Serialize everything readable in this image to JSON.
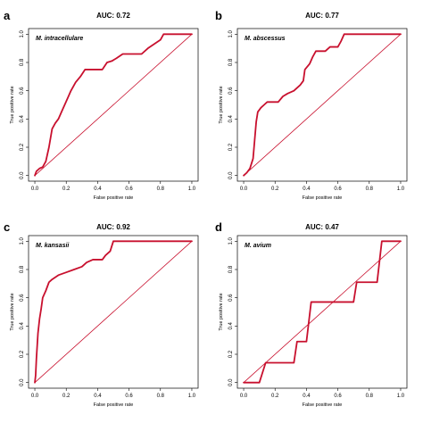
{
  "chart_data": [
    {
      "type": "line",
      "panel_label": "a",
      "title": "AUC: 0.72",
      "legend": "M. intracellulare",
      "xlabel": "False positive rate",
      "ylabel": "True positive rate",
      "xlim": [
        0,
        1
      ],
      "ylim": [
        0,
        1
      ],
      "x_ticks": [
        "0.0",
        "0.2",
        "0.4",
        "0.6",
        "0.8",
        "1.0"
      ],
      "y_ticks": [
        "0.0",
        "0.2",
        "0.4",
        "0.6",
        "0.8",
        "1.0"
      ],
      "diagonal": true,
      "colors": {
        "curve": "#c8102e",
        "diagonal": "#c8102e"
      },
      "points": [
        [
          0,
          0
        ],
        [
          0.01,
          0.03
        ],
        [
          0.03,
          0.05
        ],
        [
          0.05,
          0.06
        ],
        [
          0.07,
          0.1
        ],
        [
          0.09,
          0.2
        ],
        [
          0.11,
          0.33
        ],
        [
          0.13,
          0.37
        ],
        [
          0.15,
          0.4
        ],
        [
          0.17,
          0.45
        ],
        [
          0.19,
          0.5
        ],
        [
          0.21,
          0.55
        ],
        [
          0.23,
          0.6
        ],
        [
          0.26,
          0.66
        ],
        [
          0.29,
          0.7
        ],
        [
          0.32,
          0.75
        ],
        [
          0.4,
          0.75
        ],
        [
          0.43,
          0.75
        ],
        [
          0.46,
          0.8
        ],
        [
          0.49,
          0.81
        ],
        [
          0.52,
          0.83
        ],
        [
          0.56,
          0.86
        ],
        [
          0.68,
          0.86
        ],
        [
          0.72,
          0.9
        ],
        [
          0.76,
          0.93
        ],
        [
          0.8,
          0.96
        ],
        [
          0.82,
          1.0
        ],
        [
          1.0,
          1.0
        ]
      ]
    },
    {
      "type": "line",
      "panel_label": "b",
      "title": "AUC: 0.77",
      "legend": "M. abscessus",
      "xlabel": "False positive rate",
      "ylabel": "True positive rate",
      "xlim": [
        0,
        1
      ],
      "ylim": [
        0,
        1
      ],
      "x_ticks": [
        "0.0",
        "0.2",
        "0.4",
        "0.6",
        "0.8",
        "1.0"
      ],
      "y_ticks": [
        "0.0",
        "0.2",
        "0.4",
        "0.6",
        "0.8",
        "1.0"
      ],
      "diagonal": true,
      "colors": {
        "curve": "#c8102e",
        "diagonal": "#c8102e"
      },
      "points": [
        [
          0,
          0
        ],
        [
          0.02,
          0.02
        ],
        [
          0.04,
          0.05
        ],
        [
          0.06,
          0.12
        ],
        [
          0.07,
          0.25
        ],
        [
          0.08,
          0.38
        ],
        [
          0.09,
          0.45
        ],
        [
          0.11,
          0.48
        ],
        [
          0.13,
          0.5
        ],
        [
          0.15,
          0.52
        ],
        [
          0.22,
          0.52
        ],
        [
          0.25,
          0.56
        ],
        [
          0.28,
          0.58
        ],
        [
          0.32,
          0.6
        ],
        [
          0.36,
          0.64
        ],
        [
          0.38,
          0.67
        ],
        [
          0.39,
          0.75
        ],
        [
          0.42,
          0.79
        ],
        [
          0.44,
          0.84
        ],
        [
          0.46,
          0.88
        ],
        [
          0.52,
          0.88
        ],
        [
          0.55,
          0.91
        ],
        [
          0.6,
          0.91
        ],
        [
          0.62,
          0.95
        ],
        [
          0.64,
          1.0
        ],
        [
          1.0,
          1.0
        ]
      ]
    },
    {
      "type": "line",
      "panel_label": "c",
      "title": "AUC: 0.92",
      "legend": "M. kansasii",
      "xlabel": "False positive rate",
      "ylabel": "True positive rate",
      "xlim": [
        0,
        1
      ],
      "ylim": [
        0,
        1
      ],
      "x_ticks": [
        "0.0",
        "0.2",
        "0.4",
        "0.6",
        "0.8",
        "1.0"
      ],
      "y_ticks": [
        "0.0",
        "0.2",
        "0.4",
        "0.6",
        "0.8",
        "1.0"
      ],
      "diagonal": true,
      "colors": {
        "curve": "#c8102e",
        "diagonal": "#c8102e"
      },
      "points": [
        [
          0,
          0
        ],
        [
          0.005,
          0.05
        ],
        [
          0.01,
          0.17
        ],
        [
          0.02,
          0.35
        ],
        [
          0.03,
          0.45
        ],
        [
          0.04,
          0.52
        ],
        [
          0.05,
          0.6
        ],
        [
          0.07,
          0.65
        ],
        [
          0.09,
          0.71
        ],
        [
          0.11,
          0.73
        ],
        [
          0.15,
          0.76
        ],
        [
          0.2,
          0.78
        ],
        [
          0.25,
          0.8
        ],
        [
          0.3,
          0.82
        ],
        [
          0.33,
          0.85
        ],
        [
          0.37,
          0.87
        ],
        [
          0.43,
          0.87
        ],
        [
          0.45,
          0.9
        ],
        [
          0.48,
          0.93
        ],
        [
          0.5,
          1.0
        ],
        [
          1.0,
          1.0
        ]
      ]
    },
    {
      "type": "line",
      "panel_label": "d",
      "title": "AUC: 0.47",
      "legend": "M. avium",
      "xlabel": "False positive rate",
      "ylabel": "True positive rate",
      "xlim": [
        0,
        1
      ],
      "ylim": [
        0,
        1
      ],
      "x_ticks": [
        "0.0",
        "0.2",
        "0.4",
        "0.6",
        "0.8",
        "1.0"
      ],
      "y_ticks": [
        "0.0",
        "0.2",
        "0.4",
        "0.6",
        "0.8",
        "1.0"
      ],
      "diagonal": true,
      "colors": {
        "curve": "#c8102e",
        "diagonal": "#c8102e"
      },
      "points": [
        [
          0,
          0
        ],
        [
          0.1,
          0
        ],
        [
          0.14,
          0.14
        ],
        [
          0.32,
          0.14
        ],
        [
          0.34,
          0.29
        ],
        [
          0.4,
          0.29
        ],
        [
          0.43,
          0.57
        ],
        [
          0.7,
          0.57
        ],
        [
          0.72,
          0.71
        ],
        [
          0.85,
          0.71
        ],
        [
          0.88,
          1.0
        ],
        [
          1.0,
          1.0
        ]
      ]
    }
  ]
}
